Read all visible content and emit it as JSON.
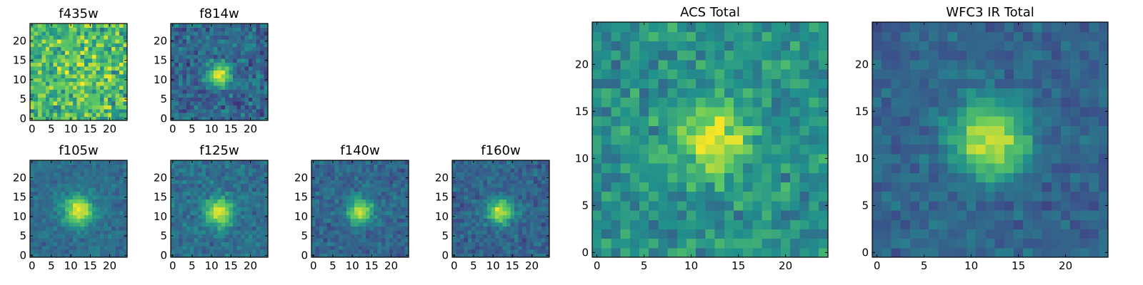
{
  "figure": {
    "colormap": "viridis",
    "colormap_stops": [
      "#440154",
      "#3b528b",
      "#21918c",
      "#5ec962",
      "#fde725"
    ]
  },
  "chart_data": [
    {
      "type": "heatmap",
      "title": "f435w",
      "xticks": [
        0,
        5,
        10,
        15,
        20
      ],
      "yticks": [
        0,
        5,
        10,
        15,
        20
      ],
      "xlim": [
        -0.5,
        24.5
      ],
      "ylim": [
        -0.5,
        24.5
      ],
      "grid": false,
      "cells": [
        25,
        25
      ],
      "description_source": "noise-dominated cutout, no visible source",
      "source": {
        "x": 12,
        "y": 12,
        "sigma": 6,
        "amplitude": 0.1,
        "background": 0.65,
        "noise": 0.33
      }
    },
    {
      "type": "heatmap",
      "title": "f814w",
      "xticks": [
        0,
        5,
        10,
        15,
        20
      ],
      "yticks": [
        0,
        5,
        10,
        15,
        20
      ],
      "xlim": [
        -0.5,
        24.5
      ],
      "ylim": [
        -0.5,
        24.5
      ],
      "grid": false,
      "cells": [
        25,
        25
      ],
      "source": {
        "x": 12,
        "y": 11.5,
        "sigma": 2.0,
        "amplitude": 0.65,
        "background": 0.33,
        "noise": 0.2
      }
    },
    {
      "type": "heatmap",
      "title": "f105w",
      "xticks": [
        0,
        5,
        10,
        15,
        20
      ],
      "yticks": [
        0,
        5,
        10,
        15,
        20
      ],
      "xlim": [
        -0.5,
        24.5
      ],
      "ylim": [
        -0.5,
        24.5
      ],
      "grid": false,
      "cells": [
        25,
        25
      ],
      "source": {
        "x": 12,
        "y": 11.5,
        "sigma": 2.6,
        "amplitude": 0.62,
        "background": 0.36,
        "noise": 0.12
      }
    },
    {
      "type": "heatmap",
      "title": "f125w",
      "xticks": [
        0,
        5,
        10,
        15,
        20
      ],
      "yticks": [
        0,
        5,
        10,
        15,
        20
      ],
      "xlim": [
        -0.5,
        24.5
      ],
      "ylim": [
        -0.5,
        24.5
      ],
      "grid": false,
      "cells": [
        25,
        25
      ],
      "source": {
        "x": 12,
        "y": 11,
        "sigma": 2.5,
        "amplitude": 0.6,
        "background": 0.37,
        "noise": 0.15
      }
    },
    {
      "type": "heatmap",
      "title": "f140w",
      "xticks": [
        0,
        5,
        10,
        15,
        20
      ],
      "yticks": [
        0,
        5,
        10,
        15,
        20
      ],
      "xlim": [
        -0.5,
        24.5
      ],
      "ylim": [
        -0.5,
        24.5
      ],
      "grid": false,
      "cells": [
        25,
        25
      ],
      "source": {
        "x": 12,
        "y": 11.5,
        "sigma": 2.3,
        "amplitude": 0.6,
        "background": 0.33,
        "noise": 0.14
      }
    },
    {
      "type": "heatmap",
      "title": "f160w",
      "xticks": [
        0,
        5,
        10,
        15,
        20
      ],
      "yticks": [
        0,
        5,
        10,
        15,
        20
      ],
      "xlim": [
        -0.5,
        24.5
      ],
      "ylim": [
        -0.5,
        24.5
      ],
      "grid": false,
      "cells": [
        25,
        25
      ],
      "source": {
        "x": 12,
        "y": 11.5,
        "sigma": 2.3,
        "amplitude": 0.62,
        "background": 0.32,
        "noise": 0.14
      }
    },
    {
      "type": "heatmap",
      "title": "ACS Total",
      "xticks": [
        0,
        5,
        10,
        15,
        20
      ],
      "yticks": [
        0,
        5,
        10,
        15,
        20
      ],
      "xlim": [
        -0.5,
        24.5
      ],
      "ylim": [
        -0.5,
        24.5
      ],
      "grid": false,
      "cells": [
        25,
        25
      ],
      "source": {
        "x": 12.5,
        "y": 12,
        "sigma": 2.6,
        "amplitude": 0.45,
        "background": 0.5,
        "noise": 0.2
      }
    },
    {
      "type": "heatmap",
      "title": "WFC3 IR Total",
      "xticks": [
        0,
        5,
        10,
        15,
        20
      ],
      "yticks": [
        0,
        5,
        10,
        15,
        20
      ],
      "xlim": [
        -0.5,
        24.5
      ],
      "ylim": [
        -0.5,
        24.5
      ],
      "grid": false,
      "cells": [
        25,
        25
      ],
      "source": {
        "x": 12,
        "y": 12,
        "sigma": 2.8,
        "amplitude": 0.62,
        "background": 0.32,
        "noise": 0.12
      }
    }
  ]
}
